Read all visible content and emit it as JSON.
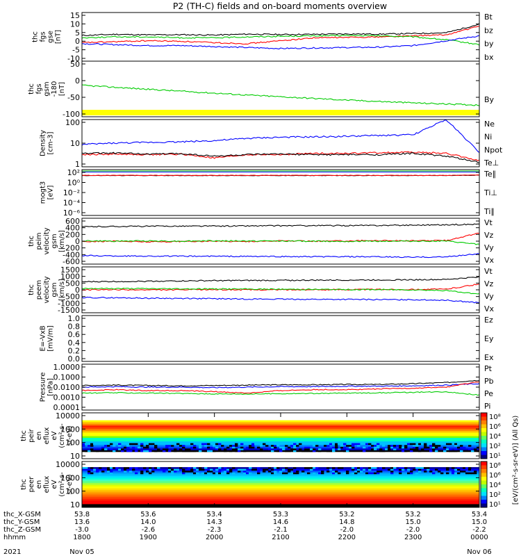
{
  "title": "P2 (TH-C) fields and on-board moments overview",
  "chart_data": {
    "type": "line",
    "title": "P2 (TH-C) fields and on-board moments overview",
    "panels": [
      {
        "id": "fgs-gse",
        "ylabel": [
          "thc",
          "fgs",
          "gse",
          "[nT]"
        ],
        "yticks": [
          "15",
          "10",
          "5",
          "0",
          "-5",
          "-10"
        ],
        "yrange": [
          -10,
          15
        ],
        "legend": [
          {
            "label": "Bt",
            "color": "#000000"
          },
          {
            "label": "bz",
            "color": "#ff0000"
          },
          {
            "label": "by",
            "color": "#00cc00"
          },
          {
            "label": "bx",
            "color": "#0000ff"
          }
        ],
        "series": [
          {
            "name": "Bt",
            "color": "#000000",
            "values": [
              3.2,
              3.8,
              3.5,
              3.6,
              3.4,
              3.9,
              3.7,
              3.8,
              4.0,
              3.9,
              4.2,
              4.6,
              9.0
            ]
          },
          {
            "name": "bz",
            "color": "#ff0000",
            "values": [
              -0.5,
              0.0,
              0.5,
              0.2,
              -0.5,
              -1.0,
              0.5,
              2.0,
              2.2,
              2.5,
              3.0,
              3.5,
              8.0
            ]
          },
          {
            "name": "by",
            "color": "#00cc00",
            "values": [
              2.0,
              2.5,
              2.5,
              2.0,
              2.0,
              2.5,
              2.8,
              3.0,
              3.2,
              3.0,
              2.5,
              1.0,
              -1.5
            ]
          },
          {
            "name": "bx",
            "color": "#0000ff",
            "values": [
              -1.0,
              -1.5,
              -2.0,
              -2.0,
              -2.5,
              -3.0,
              -3.5,
              -3.2,
              -3.0,
              -2.8,
              -2.0,
              0.5,
              3.0
            ]
          }
        ]
      },
      {
        "id": "fgs-gsm",
        "ylabel": [
          "thc",
          "fgs",
          "gsm",
          "-180",
          "[nT]"
        ],
        "yticks": [
          "50",
          "0",
          "-50",
          "-100"
        ],
        "yrange": [
          -130,
          70
        ],
        "legend": [
          {
            "label": "By",
            "color": "#00cc00"
          }
        ],
        "series": [
          {
            "name": "By",
            "color": "#00cc00",
            "values": [
              -17,
              -24,
              -31,
              -38,
              -45,
              -52,
              -58,
              -64,
              -70,
              -75,
              -80,
              -84,
              -88
            ]
          }
        ],
        "band": {
          "color": "#ffff00",
          "value": -150
        }
      },
      {
        "id": "density",
        "ylabel": [
          "Density",
          "[cm-3]"
        ],
        "yticks": [
          "100",
          "10",
          "1"
        ],
        "scale": "log",
        "yrange": [
          0.7,
          200
        ],
        "legend": [
          {
            "label": "Ne",
            "color": "#ff0000"
          },
          {
            "label": "Ni",
            "color": "#000000"
          },
          {
            "label": "Npot",
            "color": "#0000ff"
          },
          {
            "label": "Te⊥",
            "color": "#ff0000"
          }
        ],
        "series": [
          {
            "name": "Npot",
            "color": "#0000ff",
            "values": [
              10,
              12,
              13,
              14,
              16,
              21,
              24,
              25,
              27,
              30,
              32,
              200,
              4
            ]
          },
          {
            "name": "Ne",
            "color": "#ff0000",
            "values": [
              3.0,
              3.2,
              3.0,
              3.2,
              2.0,
              3.0,
              3.0,
              3.5,
              3.5,
              3.8,
              4.0,
              3.5,
              1.5
            ]
          },
          {
            "name": "Ni",
            "color": "#000000",
            "values": [
              3.5,
              3.6,
              3.2,
              3.4,
              2.5,
              3.0,
              3.2,
              3.0,
              3.0,
              3.0,
              3.5,
              2.5,
              1.2
            ]
          }
        ]
      },
      {
        "id": "mom-temp",
        "ylabel": [
          "mogt3",
          "[eV]"
        ],
        "yticks": [
          "10²",
          "10⁰",
          "10⁻²",
          "10⁻⁴",
          "10⁻⁶"
        ],
        "scale": "log",
        "yrange": [
          1e-07,
          1000
        ],
        "legend": [
          {
            "label": "Te∥",
            "color": "#000000"
          },
          {
            "label": "Ti⊥",
            "color": "#0000ff"
          },
          {
            "label": "Ti∥",
            "color": "#00cc00"
          }
        ],
        "series": [
          {
            "name": "Te∥",
            "color": "#000000",
            "values": [
              50,
              50,
              50,
              50,
              50,
              50,
              50,
              50,
              50,
              50,
              50,
              50,
              60
            ]
          },
          {
            "name": "Te⊥",
            "color": "#ff0000",
            "values": [
              55,
              55,
              55,
              55,
              55,
              55,
              55,
              55,
              55,
              55,
              55,
              55,
              65
            ]
          }
        ]
      },
      {
        "id": "peim-velocity",
        "ylabel": [
          "thc",
          "peim",
          "velocity",
          "gsm",
          "[km/s]"
        ],
        "yticks": [
          "600",
          "400",
          "200",
          "0",
          "-200",
          "-400",
          "-600"
        ],
        "yrange": [
          -700,
          700
        ],
        "legend": [
          {
            "label": "Vt",
            "color": "#000000"
          },
          {
            "label": "Vz",
            "color": "#ff0000"
          },
          {
            "label": "Vy",
            "color": "#00cc00"
          },
          {
            "label": "Vx",
            "color": "#0000ff"
          }
        ],
        "series": [
          {
            "name": "Vt",
            "color": "#000000",
            "values": [
              440,
              450,
              455,
              460,
              460,
              465,
              470,
              475,
              475,
              480,
              490,
              500,
              520
            ]
          },
          {
            "name": "Vz",
            "color": "#ff0000",
            "values": [
              -10,
              0,
              -20,
              -10,
              0,
              -10,
              10,
              0,
              10,
              20,
              10,
              20,
              250
            ]
          },
          {
            "name": "Vy",
            "color": "#00cc00",
            "values": [
              10,
              0,
              10,
              0,
              10,
              5,
              5,
              0,
              -5,
              0,
              0,
              0,
              -100
            ]
          },
          {
            "name": "Vx",
            "color": "#0000ff",
            "values": [
              -440,
              -450,
              -455,
              -460,
              -460,
              -465,
              -470,
              -475,
              -475,
              -480,
              -490,
              -480,
              -380
            ]
          }
        ]
      },
      {
        "id": "peem-velocity",
        "ylabel": [
          "thc",
          "peem",
          "velocity",
          "gsm",
          "[km/s]"
        ],
        "yticks": [
          "1500",
          "1000",
          "500",
          "0",
          "-500",
          "-1000",
          "-1500"
        ],
        "yrange": [
          -1600,
          1600
        ],
        "legend": [
          {
            "label": "Vt",
            "color": "#000000"
          },
          {
            "label": "Vz",
            "color": "#ff0000"
          },
          {
            "label": "Vy",
            "color": "#00cc00"
          },
          {
            "label": "Vx",
            "color": "#0000ff"
          }
        ],
        "series": [
          {
            "name": "Vt",
            "color": "#000000",
            "values": [
              560,
              580,
              600,
              620,
              640,
              650,
              660,
              670,
              680,
              690,
              700,
              720,
              900
            ]
          },
          {
            "name": "Vz",
            "color": "#ff0000",
            "values": [
              0,
              10,
              -10,
              0,
              20,
              0,
              10,
              0,
              20,
              30,
              20,
              50,
              400
            ]
          },
          {
            "name": "Vy",
            "color": "#00cc00",
            "values": [
              100,
              90,
              80,
              70,
              60,
              50,
              40,
              30,
              20,
              10,
              0,
              -50,
              -300
            ]
          },
          {
            "name": "Vx",
            "color": "#0000ff",
            "values": [
              -540,
              -560,
              -580,
              -600,
              -620,
              -640,
              -650,
              -660,
              -670,
              -680,
              -690,
              -720,
              -900
            ]
          }
        ]
      },
      {
        "id": "efield",
        "ylabel": [
          "E=-VxB",
          "[mV/m]"
        ],
        "yticks": [
          "1.0",
          "0.8",
          "0.6",
          "0.4",
          "0.2",
          "0.0"
        ],
        "yrange": [
          0,
          1
        ],
        "legend": [
          {
            "label": "Ez",
            "color": "#ff0000"
          },
          {
            "label": "Ey",
            "color": "#00cc00"
          },
          {
            "label": "Ex",
            "color": "#0000ff"
          }
        ],
        "series": []
      },
      {
        "id": "pressure",
        "ylabel": [
          "Pressure",
          "[nPa]"
        ],
        "yticks": [
          "1.0000",
          "0.1000",
          "0.0100",
          "0.0010",
          "0.0001"
        ],
        "scale": "log",
        "yrange": [
          0.0001,
          1
        ],
        "legend": [
          {
            "label": "Pt",
            "color": "#000000"
          },
          {
            "label": "Pb",
            "color": "#ff0000"
          },
          {
            "label": "Pe",
            "color": "#00cc00"
          },
          {
            "label": "Pi",
            "color": "#0000ff"
          }
        ],
        "series": [
          {
            "name": "Pt",
            "color": "#000000",
            "values": [
              0.014,
              0.015,
              0.014,
              0.013,
              0.014,
              0.015,
              0.016,
              0.016,
              0.017,
              0.017,
              0.02,
              0.025,
              0.04
            ]
          },
          {
            "name": "Pi",
            "color": "#0000ff",
            "values": [
              0.01,
              0.011,
              0.01,
              0.01,
              0.009,
              0.01,
              0.011,
              0.011,
              0.012,
              0.012,
              0.013,
              0.015,
              0.02
            ]
          },
          {
            "name": "Pb",
            "color": "#ff0000",
            "values": [
              0.005,
              0.006,
              0.005,
              0.005,
              0.004,
              0.003,
              0.005,
              0.006,
              0.006,
              0.007,
              0.008,
              0.01,
              0.03
            ]
          },
          {
            "name": "Pe",
            "color": "#00cc00",
            "values": [
              0.003,
              0.0032,
              0.003,
              0.0028,
              0.0026,
              0.0025,
              0.0027,
              0.0028,
              0.003,
              0.0032,
              0.0035,
              0.004,
              0.002
            ]
          }
        ]
      },
      {
        "id": "peir-spectrogram",
        "type": "heatmap",
        "ylabel": [
          "thc",
          "peir",
          "en",
          "eflux",
          "eV",
          "(cm²-s-",
          "sr-eV)"
        ],
        "yticks": [
          "10000",
          "1000",
          "100",
          "10"
        ],
        "scale": "log",
        "yrange": [
          5,
          20000
        ]
      },
      {
        "id": "peer-spectrogram",
        "type": "heatmap",
        "ylabel": [
          "thc",
          "peer",
          "en",
          "eflux",
          "eV",
          "(cm²-s-",
          "sr-eV)"
        ],
        "yticks": [
          "10000",
          "1000",
          "100",
          "10"
        ],
        "scale": "log",
        "yrange": [
          5,
          20000
        ]
      }
    ],
    "colorbar": {
      "label": "[eV/(cm²-s-sr-eV)] (All Qs)",
      "ticks": [
        "10⁸",
        "10⁶",
        "10⁴",
        "10²",
        "10¹"
      ],
      "ticks2": [
        "10⁸",
        "10⁶",
        "10⁴",
        "10²",
        "10¹"
      ]
    },
    "xaxis": {
      "rows": [
        {
          "label": "thc_X-GSM",
          "values": [
            "53.8",
            "53.6",
            "53.4",
            "53.3",
            "53.2",
            "53.2",
            "53.4"
          ]
        },
        {
          "label": "thc_Y-GSM",
          "values": [
            "13.6",
            "14.0",
            "14.3",
            "14.6",
            "14.8",
            "15.0",
            "15.0"
          ]
        },
        {
          "label": "thc_Z-GSM",
          "values": [
            "-3.0",
            "-2.6",
            "-2.3",
            "-2.1",
            "-2.0",
            "-2.0",
            "-2.2"
          ]
        },
        {
          "label": "hhmm",
          "values": [
            "1800",
            "1900",
            "2000",
            "2100",
            "2200",
            "2300",
            "0000"
          ]
        }
      ],
      "year": "2021",
      "date_start": "Nov 05",
      "date_end": "Nov 06"
    }
  }
}
